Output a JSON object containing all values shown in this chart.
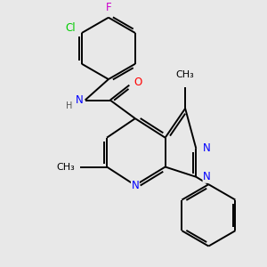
{
  "background_color": "#e8e8e8",
  "atom_colors": {
    "C": "#000000",
    "N": "#0000ff",
    "O": "#ff0000",
    "Cl": "#00cc00",
    "F": "#cc00cc",
    "H": "#555555"
  },
  "bond_color": "#000000",
  "bond_width": 1.4,
  "font_size": 8.5,
  "xlim": [
    0.2,
    3.0
  ],
  "ylim": [
    0.1,
    3.3
  ]
}
